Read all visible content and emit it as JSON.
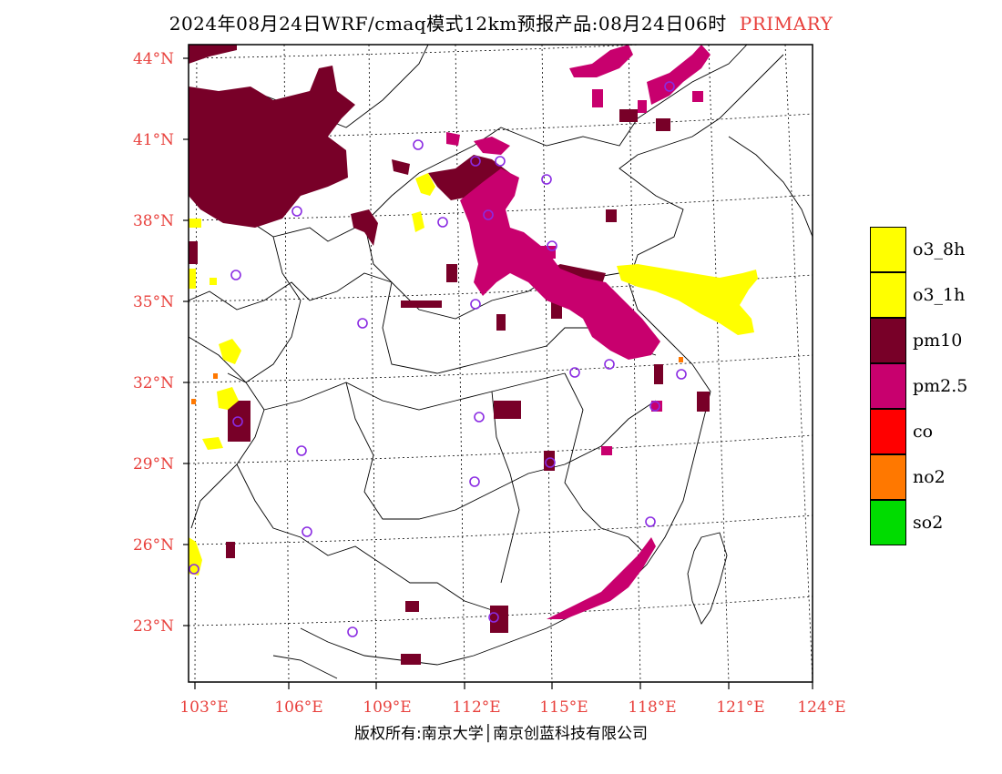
{
  "header": {
    "title": "2024年08月24日WRF/cmaq模式12km预报产品:08月24日06时",
    "tag": "PRIMARY",
    "tag_color": "#e8403c"
  },
  "axes": {
    "lat_labels": [
      "44°N",
      "41°N",
      "38°N",
      "35°N",
      "32°N",
      "29°N",
      "26°N",
      "23°N"
    ],
    "lon_labels": [
      "103°E",
      "106°E",
      "109°E",
      "112°E",
      "115°E",
      "118°E",
      "121°E",
      "124°E"
    ],
    "label_color": "#e8403c"
  },
  "legend": [
    {
      "label": "o3_8h",
      "color": "#ffff00"
    },
    {
      "label": "o3_1h",
      "color": "#ffff00"
    },
    {
      "label": "pm10",
      "color": "#780028"
    },
    {
      "label": "pm2.5",
      "color": "#c8006e"
    },
    {
      "label": "co",
      "color": "#ff0000"
    },
    {
      "label": "no2",
      "color": "#ff7800"
    },
    {
      "label": "so2",
      "color": "#00dc00"
    }
  ],
  "footer": {
    "copyright": "版权所有:南京大学│南京创蓝科技有限公司"
  },
  "map": {
    "station_marker_color": "#8a2be2",
    "region": "East and Central China"
  }
}
